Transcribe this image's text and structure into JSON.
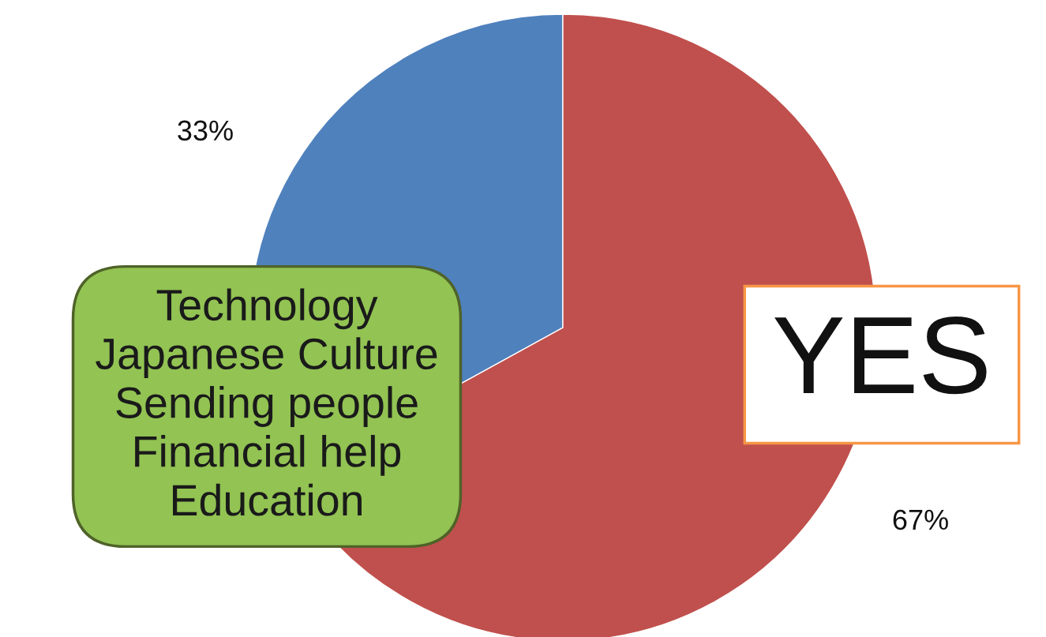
{
  "chart_data": {
    "type": "pie",
    "categories": [
      null,
      "YES"
    ],
    "values": [
      33,
      67
    ],
    "colors": [
      "#4f81bd",
      "#c0504d"
    ],
    "value_labels": [
      "33%",
      "67%"
    ],
    "annotations": [
      "Technology\nJapanese Culture\nSending people\nFinancial help\nEducation"
    ]
  }
}
